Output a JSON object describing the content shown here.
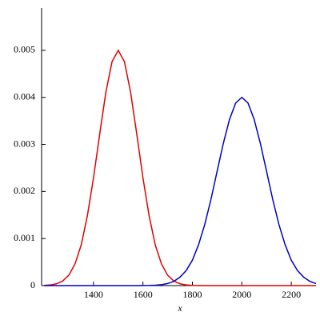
{
  "chart_data": {
    "type": "line",
    "xlabel": "x",
    "x": [
      1200,
      1225,
      1250,
      1275,
      1300,
      1325,
      1350,
      1375,
      1400,
      1425,
      1450,
      1475,
      1500,
      1525,
      1550,
      1575,
      1600,
      1625,
      1650,
      1675,
      1700,
      1725,
      1750,
      1775,
      1800,
      1825,
      1850,
      1875,
      1900,
      1925,
      1950,
      1975,
      2000,
      2025,
      2050,
      2075,
      2100,
      2125,
      2150,
      2175,
      2200,
      2225,
      2250,
      2275,
      2300
    ],
    "series": [
      {
        "color": "#e00000",
        "values": [
          4.4e-06,
          1.4e-05,
          3.8e-05,
          9.6e-05,
          0.00022,
          0.00046,
          0.00086,
          0.00148,
          0.00229,
          0.00322,
          0.00411,
          0.00476,
          0.005,
          0.00476,
          0.00411,
          0.00322,
          0.00229,
          0.00148,
          0.00086,
          0.00046,
          0.00022,
          9.6e-05,
          3.8e-05,
          1.4e-05,
          4.4e-06,
          1.3e-06,
          0,
          0,
          0,
          0,
          0,
          0,
          0,
          0,
          0,
          0,
          0,
          0,
          0,
          0,
          0,
          0,
          0,
          0,
          0
        ]
      },
      {
        "color": "#0000c8",
        "values": [
          0,
          0,
          0,
          0,
          0,
          0,
          0,
          0,
          0,
          0,
          0,
          0,
          0,
          0,
          0,
          0,
          1.3e-06,
          3.5e-06,
          8.8e-06,
          2e-05,
          4.4e-05,
          9.1e-05,
          0.00018,
          0.00032,
          0.00054,
          0.00087,
          0.0013,
          0.00183,
          0.00243,
          0.00302,
          0.00353,
          0.00388,
          0.004,
          0.00388,
          0.00353,
          0.00302,
          0.00243,
          0.00183,
          0.0013,
          0.00087,
          0.00054,
          0.00032,
          0.00018,
          9.1e-05,
          4.4e-05
        ]
      }
    ],
    "xlim": [
      1190,
      2300
    ],
    "xticks": [
      1400,
      1600,
      1800,
      2000,
      2200
    ],
    "ylim": [
      0,
      0.0059
    ],
    "yticks": [
      0,
      0.001,
      0.002,
      0.003,
      0.004,
      0.005
    ]
  }
}
